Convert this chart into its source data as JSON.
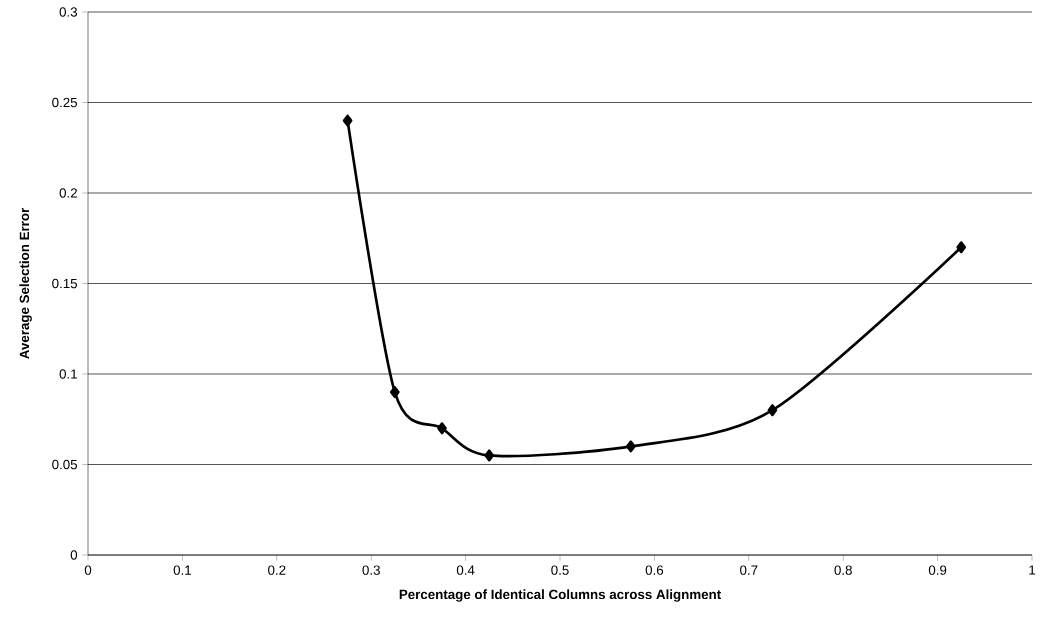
{
  "chart_data": {
    "type": "line",
    "xlabel": "Percentage of Identical Columns across Alignment",
    "ylabel": "Average Selection Error",
    "x": [
      0.275,
      0.325,
      0.375,
      0.425,
      0.575,
      0.725,
      0.925
    ],
    "series": [
      {
        "color": "#000000",
        "values": [
          0.24,
          0.09,
          0.07,
          0.055,
          0.06,
          0.08,
          0.17
        ]
      }
    ],
    "xlim": [
      0,
      1
    ],
    "ylim": [
      0,
      0.3
    ],
    "xticks": [
      0,
      0.1,
      0.2,
      0.3,
      0.4,
      0.5,
      0.6,
      0.7,
      0.8,
      0.9,
      1
    ],
    "yticks": [
      0,
      0.05,
      0.1,
      0.15,
      0.2,
      0.25,
      0.3
    ],
    "grid": "y",
    "marker": "diamond",
    "line_style": "solid"
  }
}
